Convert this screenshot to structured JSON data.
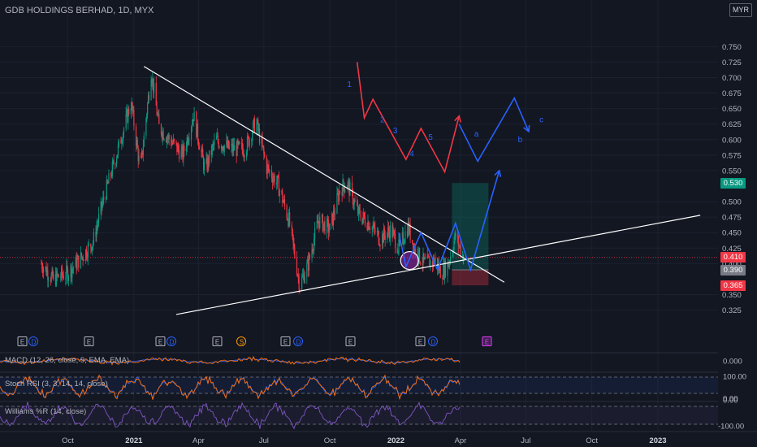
{
  "header": {
    "title": "GDB HOLDINGS BERHAD, 1D, MYX",
    "currency": "MYR"
  },
  "price_axis": {
    "ticks": [
      "0.750",
      "0.725",
      "0.700",
      "0.675",
      "0.650",
      "0.625",
      "0.600",
      "0.575",
      "0.550",
      "0.500",
      "0.475",
      "0.450",
      "0.425",
      "0.400",
      "0.350",
      "0.325"
    ],
    "tags": [
      {
        "text": "0.530",
        "value": 0.53,
        "color": "#089981"
      },
      {
        "text": "0.410",
        "value": 0.41,
        "color": "#f23645"
      },
      {
        "text": "0.390",
        "value": 0.39,
        "color": "#787b86"
      },
      {
        "text": "0.365",
        "value": 0.365,
        "color": "#f23645"
      }
    ]
  },
  "time_axis": {
    "labels": [
      "Oct",
      "2021",
      "Apr",
      "Jul",
      "Oct",
      "2022",
      "Apr",
      "Jul",
      "Oct",
      "2023"
    ]
  },
  "events": {
    "row": [
      {
        "text": "E",
        "color": "#b2b5be"
      },
      {
        "text": "D",
        "color": "#2962ff"
      },
      {
        "text": "E",
        "color": "#b2b5be"
      },
      {
        "text": "E",
        "color": "#b2b5be"
      },
      {
        "text": "D",
        "color": "#2962ff"
      },
      {
        "text": "E",
        "color": "#b2b5be"
      },
      {
        "text": "S",
        "color": "#ff9800"
      },
      {
        "text": "E",
        "color": "#b2b5be"
      },
      {
        "text": "D",
        "color": "#2962ff"
      },
      {
        "text": "E",
        "color": "#b2b5be"
      },
      {
        "text": "E",
        "color": "#b2b5be"
      },
      {
        "text": "D",
        "color": "#2962ff"
      },
      {
        "text": "E",
        "color": "#e040fb"
      }
    ]
  },
  "wave_labels": [
    "1",
    "2",
    "3",
    "4",
    "5",
    "a",
    "b",
    "c"
  ],
  "indicators": [
    {
      "name": "MACD",
      "label": "MACD (12, 26, close, 9, EMA, EMA)",
      "ticks": [
        "0.000"
      ]
    },
    {
      "name": "stoch-rsi",
      "label": "Stoch RSI (3, 3, 14, 14, close)",
      "ticks": [
        "100.00",
        "0.00"
      ]
    },
    {
      "name": "williams-r",
      "label": "Williams %R (14, close)",
      "ticks": [
        "0.00",
        "-100.00"
      ]
    }
  ],
  "colors": {
    "background": "#131722",
    "up": "#089981",
    "down": "#f23645",
    "forecast_red": "#f23645",
    "forecast_blue": "#2962ff",
    "annotation_text": "#2962ff",
    "trendline": "#ffffff"
  },
  "chart_data": {
    "type": "candlestick",
    "symbol": "GDB HOLDINGS BERHAD",
    "interval": "1D",
    "exchange": "MYX",
    "ylim": [
      0.31,
      0.76
    ],
    "time_range": [
      "2020-08",
      "2023-02"
    ],
    "close_path": [
      [
        "2020-08-25",
        0.4
      ],
      [
        "2020-09-10",
        0.375
      ],
      [
        "2020-10-01",
        0.385
      ],
      [
        "2020-10-20",
        0.41
      ],
      [
        "2020-11-05",
        0.435
      ],
      [
        "2020-11-20",
        0.505
      ],
      [
        "2020-12-10",
        0.585
      ],
      [
        "2020-12-28",
        0.66
      ],
      [
        "2021-01-10",
        0.55
      ],
      [
        "2021-01-25",
        0.71
      ],
      [
        "2021-02-05",
        0.62
      ],
      [
        "2021-02-20",
        0.6
      ],
      [
        "2021-03-10",
        0.575
      ],
      [
        "2021-03-25",
        0.64
      ],
      [
        "2021-04-10",
        0.55
      ],
      [
        "2021-04-25",
        0.6
      ],
      [
        "2021-05-15",
        0.585
      ],
      [
        "2021-06-05",
        0.585
      ],
      [
        "2021-06-20",
        0.63
      ],
      [
        "2021-07-05",
        0.555
      ],
      [
        "2021-07-20",
        0.53
      ],
      [
        "2021-08-05",
        0.47
      ],
      [
        "2021-08-20",
        0.365
      ],
      [
        "2021-09-01",
        0.4
      ],
      [
        "2021-09-15",
        0.47
      ],
      [
        "2021-10-01",
        0.455
      ],
      [
        "2021-10-15",
        0.52
      ],
      [
        "2021-10-25",
        0.53
      ],
      [
        "2021-11-10",
        0.48
      ],
      [
        "2021-11-25",
        0.465
      ],
      [
        "2021-12-10",
        0.44
      ],
      [
        "2021-12-25",
        0.455
      ],
      [
        "2022-01-05",
        0.425
      ],
      [
        "2022-01-18",
        0.46
      ],
      [
        "2022-01-28",
        0.42
      ],
      [
        "2022-02-10",
        0.4
      ],
      [
        "2022-02-25",
        0.405
      ],
      [
        "2022-03-05",
        0.385
      ],
      [
        "2022-03-15",
        0.4
      ],
      [
        "2022-03-25",
        0.445
      ],
      [
        "2022-04-05",
        0.41
      ]
    ],
    "last_price": 0.41,
    "trade_setup": {
      "target": 0.53,
      "entry": 0.39,
      "stop": 0.365,
      "start": "2022-03-20",
      "end": "2022-05-10"
    },
    "trendlines": [
      {
        "name": "descending-resistance",
        "from": [
          "2021-01-15",
          0.718
        ],
        "to": [
          "2022-06-01",
          0.37
        ]
      },
      {
        "name": "ascending-support",
        "from": [
          "2021-03-01",
          0.318
        ],
        "to": [
          "2023-03-01",
          0.478
        ]
      }
    ],
    "forecast_red_wave": [
      [
        "2021-11-08",
        0.725
      ],
      [
        "2021-11-18",
        0.635
      ],
      [
        "2021-11-30",
        0.665
      ],
      [
        "2022-01-15",
        0.568
      ],
      [
        "2022-02-05",
        0.618
      ],
      [
        "2022-03-10",
        0.548
      ],
      [
        "2022-03-30",
        0.638
      ]
    ],
    "forecast_blue_wave": [
      [
        "2022-03-30",
        0.625
      ],
      [
        "2022-04-25",
        0.565
      ],
      [
        "2022-06-15",
        0.667
      ],
      [
        "2022-07-05",
        0.613
      ]
    ],
    "forecast_blue_path": [
      [
        "2022-01-05",
        0.45
      ],
      [
        "2022-01-15",
        0.395
      ],
      [
        "2022-02-05",
        0.45
      ],
      [
        "2022-02-28",
        0.39
      ],
      [
        "2022-03-25",
        0.465
      ],
      [
        "2022-04-15",
        0.39
      ],
      [
        "2022-05-25",
        0.55
      ]
    ],
    "highlight_circle": {
      "date": "2022-01-20",
      "value": 0.405
    },
    "wave_label_positions": [
      [
        "2021-10-25",
        0.685
      ],
      [
        "2021-12-10",
        0.628
      ],
      [
        "2021-12-28",
        0.61
      ],
      [
        "2022-01-20",
        0.573
      ],
      [
        "2022-02-15",
        0.6
      ],
      [
        "2022-04-20",
        0.605
      ],
      [
        "2022-06-20",
        0.596
      ],
      [
        "2022-07-20",
        0.628
      ]
    ]
  }
}
